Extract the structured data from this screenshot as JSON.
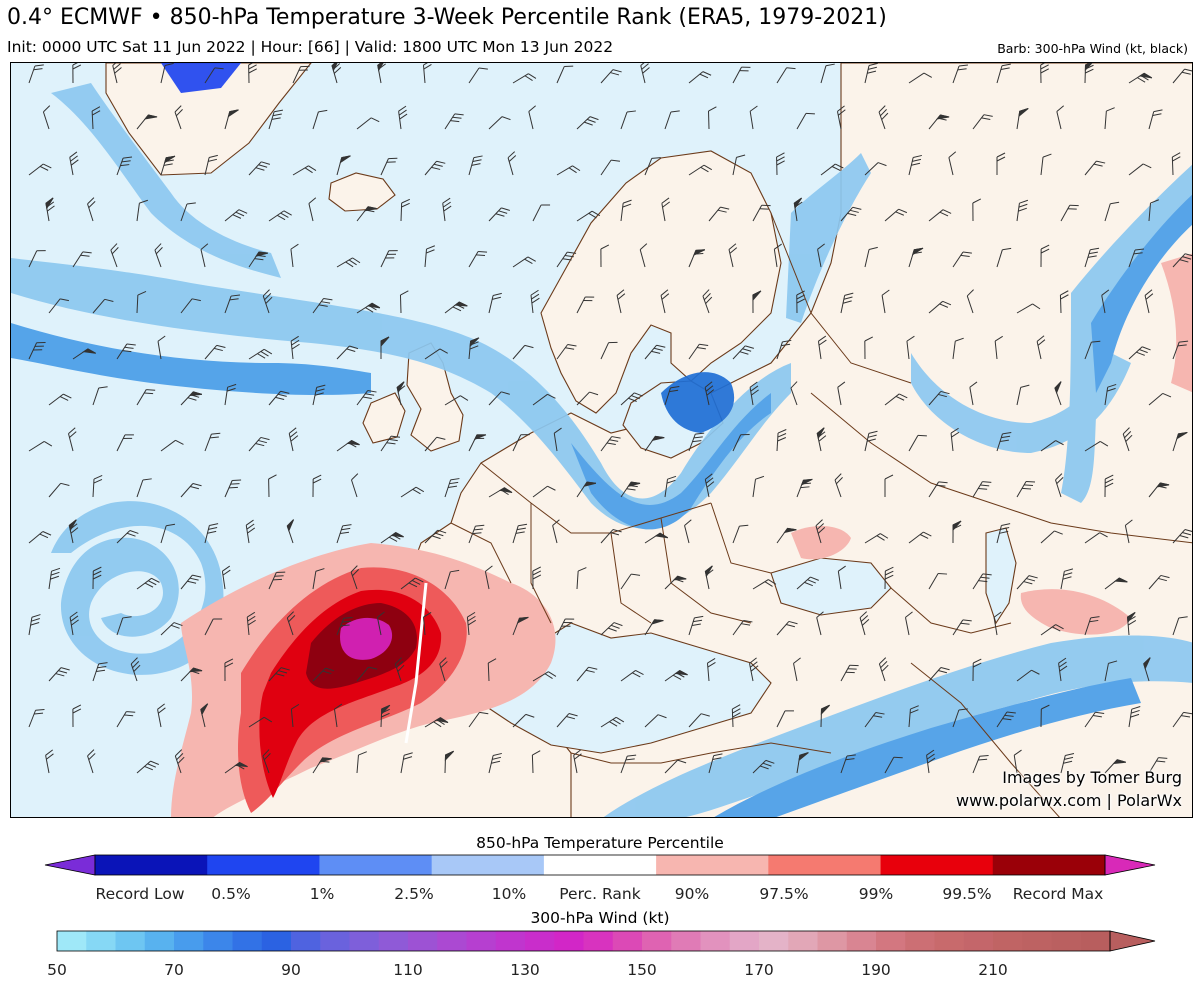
{
  "header": {
    "title": "0.4° ECMWF • 850-hPa Temperature 3-Week Percentile Rank (ERA5, 1979-2021)",
    "subtitle": "Init: 0000 UTC Sat 11 Jun 2022 | Hour: [66] | Valid: 1800 UTC Mon 13 Jun 2022",
    "barb_note": "Barb: 300-hPa Wind (kt, black)"
  },
  "credits": {
    "line1": "Images by Tomer Burg",
    "line2": "www.polarwx.com | PolarWx"
  },
  "map": {
    "region": "North Atlantic and Europe",
    "colors": {
      "background_low_percentile": "#dff2fb",
      "land_near_normal": "#fbf3ea",
      "jet_light": "#8cc8f0",
      "jet_medium": "#4a9ee8",
      "jet_dark": "#1f6fd6",
      "warm_light": "#f6b6b0",
      "warm_medium": "#ee5a5a",
      "warm_strong": "#e00010",
      "warm_extreme": "#8e0010",
      "record_max": "#d020b0",
      "coastline": "#6b3a1a"
    }
  },
  "colorbar_temperature": {
    "title": "850-hPa Temperature Percentile",
    "labels": [
      "Record Low",
      "0.5%",
      "1%",
      "2.5%",
      "10%",
      "Perc. Rank",
      "90%",
      "97.5%",
      "99%",
      "99.5%",
      "Record Max"
    ],
    "colors": [
      "#7a2cd8",
      "#0a14b8",
      "#1f45f0",
      "#5e8ef5",
      "#a8c8f7",
      "#ffffff",
      "#f7b6b0",
      "#f57a70",
      "#e8000c",
      "#9a0008",
      "#d829b8"
    ]
  },
  "colorbar_wind": {
    "title": "300-hPa Wind (kt)",
    "labels": [
      "50",
      "70",
      "90",
      "110",
      "130",
      "150",
      "170",
      "190",
      "210"
    ],
    "min": 50,
    "max": 230,
    "step": 5,
    "colors": [
      "#9fe8f8",
      "#86d8f5",
      "#6ec6f2",
      "#58b2ef",
      "#489ced",
      "#3c86ea",
      "#3272e6",
      "#2b62e2",
      "#4f63e0",
      "#6a62dd",
      "#7e5fda",
      "#8f5ad7",
      "#9d52d4",
      "#ab49d2",
      "#b63fd0",
      "#c035ce",
      "#c92dcb",
      "#d226c7",
      "#d833bf",
      "#dc49b6",
      "#df63b2",
      "#e07bb6",
      "#e292be",
      "#e3a6c6",
      "#e4b3c8",
      "#e2a7b7",
      "#de97a4",
      "#d98592",
      "#d37780",
      "#cc6f74",
      "#c86a6c",
      "#c4666a",
      "#c06464",
      "#bd6262",
      "#ba6060",
      "#b85e5e"
    ]
  }
}
